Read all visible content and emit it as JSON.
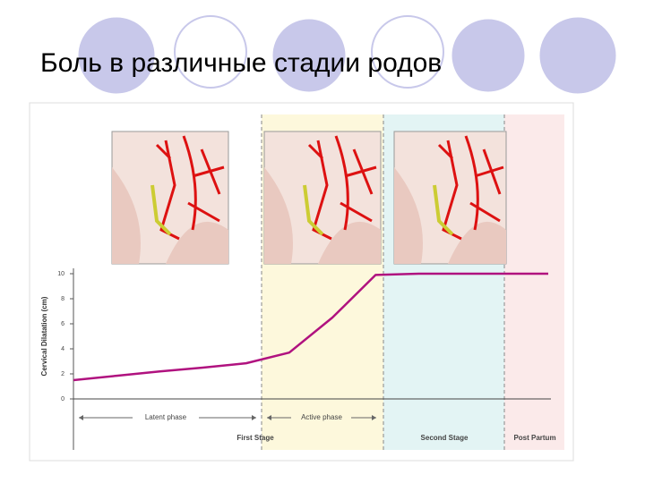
{
  "chart_data": {
    "type": "line",
    "title": "Боль в различные стадии родов",
    "y_label": "Cervical Dilatation (cm)",
    "categories": [
      null,
      null,
      null,
      null,
      null,
      null,
      null,
      null,
      null,
      null,
      null,
      null
    ],
    "values": [
      1.5,
      1.85,
      2.2,
      2.5,
      2.85,
      3.7,
      6.5,
      9.9,
      10,
      10,
      10,
      10
    ],
    "color": "#b0127f",
    "ylim": [
      0,
      10
    ],
    "yticks": [
      0,
      2,
      4,
      6,
      8,
      10
    ],
    "phases": [
      "Latent phase",
      "Active phase"
    ],
    "stages": [
      "First Stage",
      "Second Stage",
      "Post Partum"
    ]
  }
}
